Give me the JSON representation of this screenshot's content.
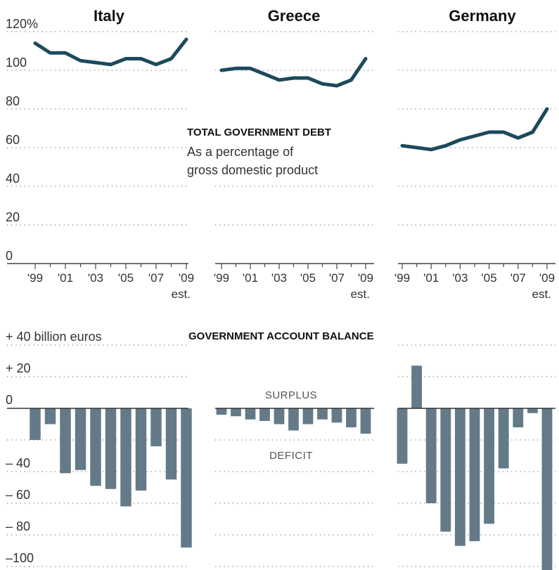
{
  "countries": [
    "Italy",
    "Greece",
    "Germany"
  ],
  "debt_block": {
    "title": "TOTAL GOVERNMENT DEBT",
    "subtitle_line1": "As a percentage of",
    "subtitle_line2": "gross domestic product",
    "y_tick_labels": [
      "120%",
      "100",
      "80",
      "60",
      "40",
      "20",
      "0"
    ],
    "x_tick_labels": [
      "'99",
      "'01",
      "'03",
      "'05",
      "'07",
      "'09"
    ],
    "est_label": "est."
  },
  "balance_block": {
    "title": "GOVERNMENT ACCOUNT BALANCE",
    "y_tick_labels": [
      "+ 40 billion euros",
      "+ 20",
      "0",
      "– 40",
      "– 60",
      "– 80",
      "–100"
    ],
    "surplus_label": "SURPLUS",
    "deficit_label": "DEFICIT"
  },
  "colors": {
    "debt_line": "#1b4a5c",
    "bars": "#647a89"
  },
  "chart_data": [
    {
      "type": "line",
      "title": "Italy",
      "x": [
        1999,
        2000,
        2001,
        2002,
        2003,
        2004,
        2005,
        2006,
        2007,
        2008,
        2009
      ],
      "series": [
        {
          "values": [
            114,
            109,
            109,
            105,
            104,
            103,
            106,
            106,
            103,
            106,
            116
          ]
        }
      ],
      "ylim": [
        0,
        120
      ],
      "xlim": [
        1999,
        2009
      ],
      "y_unit": "percent of GDP"
    },
    {
      "type": "line",
      "title": "Greece",
      "x": [
        1999,
        2000,
        2001,
        2002,
        2003,
        2004,
        2005,
        2006,
        2007,
        2008,
        2009
      ],
      "series": [
        {
          "values": [
            100,
            101,
            101,
            98,
            95,
            96,
            96,
            93,
            92,
            95,
            106
          ]
        }
      ],
      "ylim": [
        0,
        120
      ],
      "xlim": [
        1999,
        2009
      ],
      "y_unit": "percent of GDP"
    },
    {
      "type": "line",
      "title": "Germany",
      "x": [
        1999,
        2000,
        2001,
        2002,
        2003,
        2004,
        2005,
        2006,
        2007,
        2008,
        2009
      ],
      "series": [
        {
          "values": [
            61,
            60,
            59,
            61,
            64,
            66,
            68,
            68,
            65,
            68,
            80
          ]
        }
      ],
      "ylim": [
        0,
        120
      ],
      "xlim": [
        1999,
        2009
      ],
      "y_unit": "percent of GDP"
    },
    {
      "type": "bar",
      "title": "Italy",
      "x": [
        1999,
        2000,
        2001,
        2002,
        2003,
        2004,
        2005,
        2006,
        2007,
        2008,
        2009
      ],
      "values": [
        -20,
        -10,
        -41,
        -39,
        -49,
        -51,
        -62,
        -52,
        -24,
        -45,
        -88
      ],
      "ylim": [
        -100,
        40
      ],
      "y_unit": "billion euros"
    },
    {
      "type": "bar",
      "title": "Greece",
      "x": [
        1999,
        2000,
        2001,
        2002,
        2003,
        2004,
        2005,
        2006,
        2007,
        2008,
        2009
      ],
      "values": [
        -4,
        -5,
        -7,
        -8,
        -10,
        -14,
        -10,
        -7,
        -9,
        -12,
        -16
      ],
      "ylim": [
        -100,
        40
      ],
      "y_unit": "billion euros"
    },
    {
      "type": "bar",
      "title": "Germany",
      "x": [
        1999,
        2000,
        2001,
        2002,
        2003,
        2004,
        2005,
        2006,
        2007,
        2008,
        2009
      ],
      "values": [
        -35,
        27,
        -60,
        -78,
        -87,
        -84,
        -73,
        -38,
        -12,
        -3,
        -105
      ],
      "ylim": [
        -100,
        40
      ],
      "y_unit": "billion euros"
    }
  ]
}
